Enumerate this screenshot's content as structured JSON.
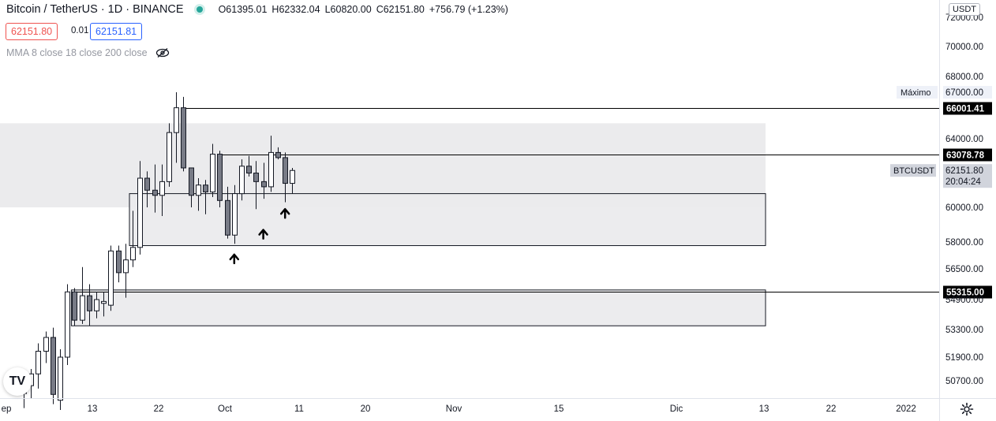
{
  "header": {
    "title": "Bitcoin / TetherUS · 1D · BINANCE",
    "open": "O61395.01",
    "high": "H62332.04",
    "low": "L60820.00",
    "close": "C62151.80",
    "change": "+756.79 (+1.23%)",
    "status_color": "#26a69a"
  },
  "trade": {
    "sell_price": "62151.80",
    "spread": "0.01",
    "buy_price": "62151.81"
  },
  "indicator": {
    "label": "MMA 8 close 18 close 200 close",
    "icon": "eye-hidden-icon"
  },
  "currency_button": "USDT",
  "logo_text": "TV",
  "chart_data": {
    "type": "candlestick",
    "symbol": "BTCUSDT",
    "ylim": [
      50000,
      72500
    ],
    "x_ticks": [
      "ep",
      "13",
      "22",
      "Oct",
      "11",
      "20",
      "Nov",
      "15",
      "Dic",
      "13",
      "22",
      "2022"
    ],
    "y_ticks": [
      "72000.00",
      "70000.00",
      "68000.00",
      "67000.00",
      "64000.00",
      "62151.80",
      "60000.00",
      "58000.00",
      "56500.00",
      "54900.00",
      "53300.00",
      "51900.00",
      "50700.00"
    ],
    "candles": [
      {
        "o": 50050,
        "h": 50700,
        "l": 49300,
        "c": 50450
      },
      {
        "o": 50450,
        "h": 51300,
        "l": 49800,
        "c": 51050
      },
      {
        "o": 51050,
        "h": 52600,
        "l": 50300,
        "c": 52200
      },
      {
        "o": 52200,
        "h": 53200,
        "l": 51600,
        "c": 52900
      },
      {
        "o": 52900,
        "h": 53400,
        "l": 49500,
        "c": 50000
      },
      {
        "o": 49700,
        "h": 52300,
        "l": 49200,
        "c": 51900
      },
      {
        "o": 51900,
        "h": 55700,
        "l": 51500,
        "c": 55300
      },
      {
        "o": 55300,
        "h": 55500,
        "l": 53500,
        "c": 53800
      },
      {
        "o": 53800,
        "h": 56600,
        "l": 53600,
        "c": 55100
      },
      {
        "o": 55100,
        "h": 55700,
        "l": 53500,
        "c": 54300
      },
      {
        "o": 54300,
        "h": 55300,
        "l": 53900,
        "c": 54900
      },
      {
        "o": 54700,
        "h": 55300,
        "l": 54000,
        "c": 54800
      },
      {
        "o": 54600,
        "h": 57800,
        "l": 54300,
        "c": 57500
      },
      {
        "o": 57500,
        "h": 57800,
        "l": 55800,
        "c": 56300
      },
      {
        "o": 56300,
        "h": 57900,
        "l": 55000,
        "c": 57000
      },
      {
        "o": 57000,
        "h": 59800,
        "l": 56600,
        "c": 57700
      },
      {
        "o": 57700,
        "h": 62700,
        "l": 57300,
        "c": 61700
      },
      {
        "o": 61700,
        "h": 62100,
        "l": 60000,
        "c": 61000
      },
      {
        "o": 61000,
        "h": 62500,
        "l": 59700,
        "c": 60700
      },
      {
        "o": 60700,
        "h": 62500,
        "l": 59500,
        "c": 61500
      },
      {
        "o": 61500,
        "h": 65000,
        "l": 61200,
        "c": 64400
      },
      {
        "o": 64400,
        "h": 67000,
        "l": 62600,
        "c": 66000
      },
      {
        "o": 66000,
        "h": 66700,
        "l": 62100,
        "c": 62300
      },
      {
        "o": 62300,
        "h": 62300,
        "l": 60000,
        "c": 60700
      },
      {
        "o": 60700,
        "h": 61700,
        "l": 59800,
        "c": 61300
      },
      {
        "o": 61300,
        "h": 61600,
        "l": 59600,
        "c": 60900
      },
      {
        "o": 60900,
        "h": 63700,
        "l": 60600,
        "c": 63100
      },
      {
        "o": 63100,
        "h": 63300,
        "l": 60000,
        "c": 60400
      },
      {
        "o": 60400,
        "h": 61200,
        "l": 58200,
        "c": 58400
      },
      {
        "o": 58400,
        "h": 61300,
        "l": 57900,
        "c": 60800
      },
      {
        "o": 60800,
        "h": 62800,
        "l": 60400,
        "c": 62400
      },
      {
        "o": 62400,
        "h": 63000,
        "l": 61800,
        "c": 62000
      },
      {
        "o": 62000,
        "h": 62700,
        "l": 59900,
        "c": 61500
      },
      {
        "o": 61500,
        "h": 62600,
        "l": 60500,
        "c": 61200
      },
      {
        "o": 61200,
        "h": 64200,
        "l": 60900,
        "c": 63200
      },
      {
        "o": 63200,
        "h": 63500,
        "l": 62800,
        "c": 62900
      },
      {
        "o": 62900,
        "h": 63200,
        "l": 60300,
        "c": 61400
      },
      {
        "o": 61400,
        "h": 62300,
        "l": 60800,
        "c": 62150
      }
    ],
    "zones": [
      {
        "from": "start",
        "to": "end",
        "y_top": 65000,
        "y_bottom": 60000,
        "style": "full-width"
      },
      {
        "from": 15,
        "to": "end",
        "y_top": 60800,
        "y_bottom": 57800,
        "style": "outlined"
      },
      {
        "from": 7,
        "to": "end",
        "y_top": 55400,
        "y_bottom": 53500,
        "style": "outlined"
      }
    ],
    "levels": [
      {
        "price": 66001.41,
        "label": "66001.41",
        "from": 22
      },
      {
        "price": 63078.78,
        "label": "63078.78",
        "from": 27
      },
      {
        "price": 55315.0,
        "label": "55315.00",
        "from": 7
      }
    ],
    "labels": {
      "max_label": "Máximo",
      "max_value": "67000.00",
      "current_label": "BTCUSDT",
      "current_price": "62151.80",
      "countdown": "20:04:24"
    },
    "arrows": [
      {
        "candle": 29,
        "price": 57300
      },
      {
        "candle": 33,
        "price": 58700
      },
      {
        "candle": 36,
        "price": 59900
      }
    ],
    "grid": false,
    "colors": {
      "up": "#ffffff",
      "down": "#787b86",
      "wick": "#131722",
      "zone": "#ebebed",
      "level": "#000000"
    }
  }
}
